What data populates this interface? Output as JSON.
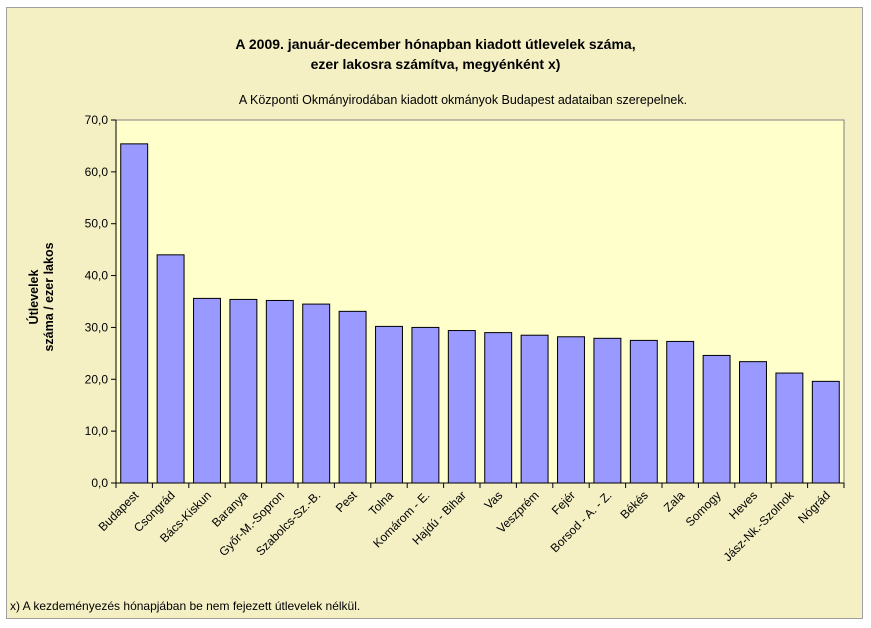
{
  "chart_data": {
    "type": "bar",
    "title_lines": [
      "A 2009. január-december hónapban kiadott útlevelek száma,",
      "ezer lakosra számítva, megyénként x)"
    ],
    "subtitle": "A Központi Okmányirodában kiadott okmányok Budapest adataiban szerepelnek.",
    "ylabel_lines": [
      "Útlevelek",
      "száma / ezer lakos"
    ],
    "xlabel": "",
    "ylim": [
      0,
      70
    ],
    "yticks": [
      "0,0",
      "10,0",
      "20,0",
      "30,0",
      "40,0",
      "50,0",
      "60,0",
      "70,0"
    ],
    "grid": false,
    "bar_color": "#9999ff",
    "plot_bg": "#ffffcc",
    "categories": [
      "Budapest",
      "Csongrád",
      "Bács-Kiskun",
      "Baranya",
      "Győr-M.-Sopron",
      "Szabolcs-Sz.-B.",
      "Pest",
      "Tolna",
      "Komárom - E.",
      "Hajdú - Bihar",
      "Vas",
      "Veszprém",
      "Fejér",
      "Borsod - A. - Z.",
      "Békés",
      "Zala",
      "Somogy",
      "Heves",
      "Jász-Nk.-Szolnok",
      "Nógrád"
    ],
    "values": [
      65.4,
      44.0,
      35.6,
      35.4,
      35.2,
      34.5,
      33.1,
      30.2,
      30.0,
      29.4,
      29.0,
      28.5,
      28.2,
      27.9,
      27.5,
      27.3,
      24.6,
      23.4,
      21.2,
      19.6
    ]
  },
  "footnote": "x) A kezdeményezés hónapjában be nem fejezett útlevelek nélkül."
}
